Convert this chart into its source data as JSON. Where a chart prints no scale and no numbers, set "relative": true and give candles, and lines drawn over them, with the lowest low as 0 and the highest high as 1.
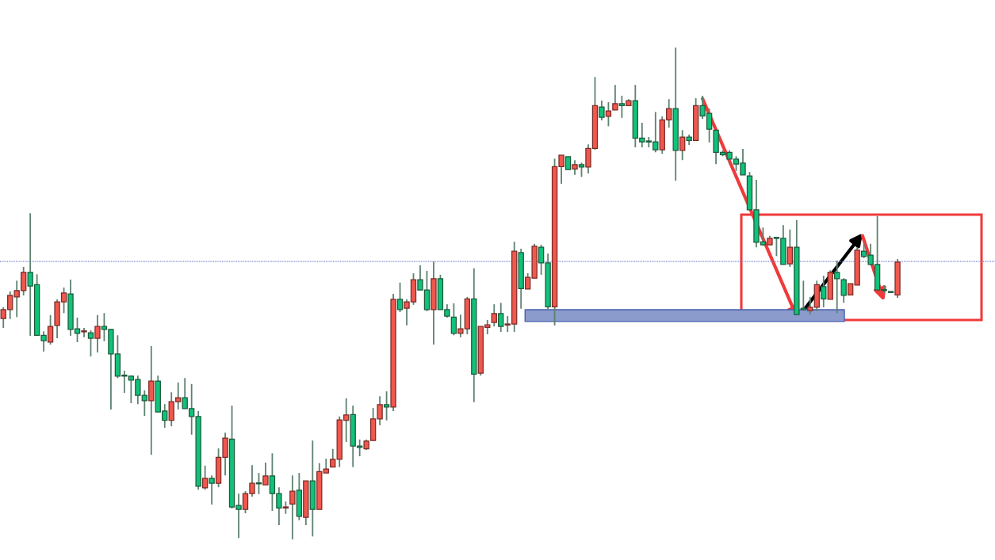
{
  "chart_data": {
    "type": "candlestick",
    "relative": true,
    "categories": [
      null,
      null,
      null,
      null,
      null,
      null,
      null,
      null,
      null,
      null,
      null,
      null,
      null,
      null,
      null,
      null,
      null,
      null,
      null,
      null,
      null,
      null,
      null,
      null,
      null,
      null,
      null,
      null,
      null,
      null,
      null,
      null,
      null,
      null,
      null,
      null,
      null,
      null,
      null,
      null,
      null,
      null,
      null,
      null,
      null,
      null,
      null,
      null,
      null,
      null,
      null,
      null,
      null,
      null,
      null,
      null,
      null,
      null,
      null,
      null,
      null,
      null,
      null,
      null,
      null,
      null,
      null,
      null,
      null,
      null,
      null,
      null,
      null,
      null,
      null,
      null,
      null,
      null,
      null,
      null,
      null,
      null,
      null,
      null,
      null,
      null,
      null,
      null,
      null,
      null,
      null,
      null,
      null,
      null,
      null,
      null,
      null,
      null,
      null,
      null,
      null,
      null,
      null,
      null,
      null,
      null,
      null,
      null,
      null,
      null,
      null,
      null,
      null,
      null,
      null,
      null,
      null,
      null,
      null,
      null,
      null,
      null,
      null,
      null,
      null,
      null,
      null,
      null,
      null,
      null,
      null,
      null,
      null,
      null
    ],
    "colors": [
      "#f0584e",
      "#f0584e",
      "#f0584e",
      "#f0584e",
      "#10c27a",
      "#10c27a",
      "#10c27a",
      "#f0584e",
      "#f0584e",
      "#f0584e",
      "#10c27a",
      "#10c27a",
      "#f0584e",
      "#10c27a",
      "#f0584e",
      "#10c27a",
      "#10c27a",
      "#10c27a",
      "#10c27a",
      "#10c27a",
      "#10c27a",
      "#10c27a",
      "#f0584e",
      "#10c27a",
      "#10c27a",
      "#f0584e",
      "#f0584e",
      "#10c27a",
      "#10c27a",
      "#10c27a",
      "#f0584e",
      "#10c27a",
      "#f0584e",
      "#f0584e",
      "#10c27a",
      "#10c27a",
      "#f0584e",
      "#f0584e",
      "#10c27a",
      "#f0584e",
      "#10c27a",
      "#10c27a",
      "#f0584e",
      "#f0584e",
      "#10c27a",
      "#f0584e",
      "#10c27a",
      "#f0584e",
      "#f0584e",
      "#f0584e",
      "#f0584e",
      "#f0584e",
      "#10c27a",
      "#10c27a",
      "#f0584e",
      "#f0584e",
      "#f0584e",
      "#10c27a",
      "#f0584e",
      "#10c27a",
      "#f0584e",
      "#f0584e",
      "#10c27a",
      "#10c27a",
      "#f0584e",
      "#10c27a",
      "#10c27a",
      "#10c27a",
      "#f0584e",
      "#f0584e",
      "#10c27a",
      "#f0584e",
      "#f0584e",
      "#f0584e",
      "#10c27a",
      "#f0584e",
      "#f0584e",
      "#10c27a",
      "#f0584e",
      "#f0584e",
      "#10c27a",
      "#10c27a",
      "#f0584e",
      "#f0584e",
      "#10c27a",
      "#f0584e",
      "#10c27a",
      "#f0584e",
      "#f0584e",
      "#10c27a",
      "#f0584e",
      "#f0584e",
      "#10c27a",
      "#f0584e",
      "#10c27a",
      "#10c27a",
      "#10c27a",
      "#10c27a",
      "#f0584e",
      "#f0584e",
      "#10c27a",
      "#f0584e",
      "#10c27a",
      "#f0584e",
      "#10c27a",
      "#10c27a",
      "#10c27a",
      "#10c27a",
      "#10c27a",
      "#10c27a",
      "#10c27a",
      "#10c27a",
      "#10c27a",
      "#10c27a",
      "#f0584e",
      "#10c27a",
      "#10c27a",
      "#f0584e",
      "#10c27a",
      "#10c27a",
      "#f0584e",
      "#f0584e",
      "#10c27a",
      "#f0584e",
      "#10c27a",
      "#10c27a",
      "#f0584e",
      "#f0584e",
      "#10c27a",
      "#10c27a",
      "#10c27a",
      "#10c27a",
      "#10c27a",
      "#f0584e"
    ],
    "ohlc": [
      [
        0.449,
        0.472,
        0.43,
        0.467
      ],
      [
        0.467,
        0.504,
        0.448,
        0.496
      ],
      [
        0.493,
        0.526,
        0.452,
        0.506
      ],
      [
        0.506,
        0.554,
        0.496,
        0.543
      ],
      [
        0.543,
        0.663,
        0.414,
        0.515
      ],
      [
        0.518,
        0.539,
        0.414,
        0.415
      ],
      [
        0.415,
        0.423,
        0.382,
        0.404
      ],
      [
        0.401,
        0.456,
        0.396,
        0.433
      ],
      [
        0.435,
        0.488,
        0.409,
        0.483
      ],
      [
        0.483,
        0.512,
        0.46,
        0.501
      ],
      [
        0.499,
        0.528,
        0.414,
        0.427
      ],
      [
        0.428,
        0.451,
        0.401,
        0.419
      ],
      [
        0.422,
        0.43,
        0.411,
        0.423
      ],
      [
        0.42,
        0.425,
        0.372,
        0.409
      ],
      [
        0.409,
        0.456,
        0.38,
        0.433
      ],
      [
        0.433,
        0.46,
        0.403,
        0.427
      ],
      [
        0.427,
        0.427,
        0.264,
        0.377
      ],
      [
        0.377,
        0.415,
        0.328,
        0.332
      ],
      [
        0.333,
        0.343,
        0.298,
        0.332
      ],
      [
        0.332,
        0.333,
        0.277,
        0.324
      ],
      [
        0.325,
        0.333,
        0.275,
        0.293
      ],
      [
        0.293,
        0.303,
        0.251,
        0.282
      ],
      [
        0.282,
        0.393,
        0.172,
        0.322
      ],
      [
        0.322,
        0.333,
        0.259,
        0.259
      ],
      [
        0.261,
        0.275,
        0.227,
        0.242
      ],
      [
        0.242,
        0.299,
        0.23,
        0.28
      ],
      [
        0.28,
        0.319,
        0.264,
        0.288
      ],
      [
        0.288,
        0.328,
        0.266,
        0.266
      ],
      [
        0.266,
        0.316,
        0.213,
        0.25
      ],
      [
        0.25,
        0.261,
        0.101,
        0.108
      ],
      [
        0.105,
        0.15,
        0.101,
        0.124
      ],
      [
        0.124,
        0.13,
        0.071,
        0.114
      ],
      [
        0.114,
        0.185,
        0.106,
        0.167
      ],
      [
        0.167,
        0.217,
        0.13,
        0.206
      ],
      [
        0.204,
        0.272,
        0.063,
        0.066
      ],
      [
        0.069,
        0.093,
        0.003,
        0.061
      ],
      [
        0.061,
        0.098,
        0.053,
        0.093
      ],
      [
        0.093,
        0.151,
        0.087,
        0.114
      ],
      [
        0.114,
        0.135,
        0.092,
        0.113
      ],
      [
        0.111,
        0.156,
        0.111,
        0.129
      ],
      [
        0.129,
        0.175,
        0.058,
        0.093
      ],
      [
        0.093,
        0.106,
        0.029,
        0.064
      ],
      [
        0.064,
        0.077,
        0.052,
        0.066
      ],
      [
        0.072,
        0.13,
        0.0,
        0.098
      ],
      [
        0.1,
        0.135,
        0.039,
        0.047
      ],
      [
        0.045,
        0.119,
        0.029,
        0.119
      ],
      [
        0.119,
        0.201,
        0.006,
        0.061
      ],
      [
        0.061,
        0.155,
        0.061,
        0.138
      ],
      [
        0.135,
        0.164,
        0.135,
        0.143
      ],
      [
        0.147,
        0.184,
        0.147,
        0.163
      ],
      [
        0.163,
        0.25,
        0.147,
        0.243
      ],
      [
        0.242,
        0.287,
        0.198,
        0.253
      ],
      [
        0.254,
        0.272,
        0.147,
        0.19
      ],
      [
        0.19,
        0.203,
        0.169,
        0.187
      ],
      [
        0.184,
        0.203,
        0.182,
        0.2
      ],
      [
        0.201,
        0.267,
        0.201,
        0.245
      ],
      [
        0.245,
        0.291,
        0.232,
        0.274
      ],
      [
        0.274,
        0.301,
        0.242,
        0.269
      ],
      [
        0.269,
        0.499,
        0.261,
        0.488
      ],
      [
        0.488,
        0.522,
        0.462,
        0.467
      ],
      [
        0.47,
        0.488,
        0.435,
        0.483
      ],
      [
        0.483,
        0.541,
        0.477,
        0.528
      ],
      [
        0.528,
        0.557,
        0.507,
        0.507
      ],
      [
        0.507,
        0.546,
        0.464,
        0.467
      ],
      [
        0.467,
        0.565,
        0.396,
        0.53
      ],
      [
        0.53,
        0.538,
        0.467,
        0.467
      ],
      [
        0.467,
        0.478,
        0.451,
        0.454
      ],
      [
        0.452,
        0.48,
        0.415,
        0.419
      ],
      [
        0.419,
        0.457,
        0.411,
        0.428
      ],
      [
        0.428,
        0.493,
        0.417,
        0.489
      ],
      [
        0.489,
        0.551,
        0.279,
        0.336
      ],
      [
        0.338,
        0.433,
        0.333,
        0.433
      ],
      [
        0.431,
        0.446,
        0.417,
        0.436
      ],
      [
        0.441,
        0.478,
        0.433,
        0.459
      ],
      [
        0.459,
        0.481,
        0.422,
        0.433
      ],
      [
        0.436,
        0.454,
        0.422,
        0.438
      ],
      [
        0.438,
        0.605,
        0.422,
        0.586
      ],
      [
        0.583,
        0.591,
        0.469,
        0.51
      ],
      [
        0.509,
        0.541,
        0.509,
        0.533
      ],
      [
        0.531,
        0.601,
        0.531,
        0.596
      ],
      [
        0.594,
        0.599,
        0.538,
        0.562
      ],
      [
        0.562,
        0.581,
        0.467,
        0.473
      ],
      [
        0.473,
        0.774,
        0.435,
        0.758
      ],
      [
        0.758,
        0.781,
        0.723,
        0.781
      ],
      [
        0.778,
        0.778,
        0.752,
        0.752
      ],
      [
        0.753,
        0.771,
        0.741,
        0.762
      ],
      [
        0.762,
        0.766,
        0.737,
        0.757
      ],
      [
        0.757,
        0.803,
        0.744,
        0.795
      ],
      [
        0.795,
        0.94,
        0.792,
        0.882
      ],
      [
        0.879,
        0.892,
        0.852,
        0.858
      ],
      [
        0.86,
        0.889,
        0.84,
        0.871
      ],
      [
        0.873,
        0.924,
        0.873,
        0.886
      ],
      [
        0.886,
        0.902,
        0.857,
        0.882
      ],
      [
        0.882,
        0.895,
        0.882,
        0.892
      ],
      [
        0.892,
        0.924,
        0.797,
        0.816
      ],
      [
        0.816,
        0.847,
        0.797,
        0.808
      ],
      [
        0.81,
        0.818,
        0.797,
        0.808
      ],
      [
        0.808,
        0.869,
        0.787,
        0.792
      ],
      [
        0.792,
        0.86,
        0.784,
        0.853
      ],
      [
        0.853,
        0.895,
        0.837,
        0.876
      ],
      [
        0.876,
        1.0,
        0.729,
        0.791
      ],
      [
        0.791,
        0.832,
        0.771,
        0.818
      ],
      [
        0.818,
        0.823,
        0.802,
        0.811
      ],
      [
        0.811,
        0.897,
        0.811,
        0.882
      ],
      [
        0.882,
        0.902,
        0.855,
        0.861
      ],
      [
        0.866,
        0.876,
        0.807,
        0.834
      ],
      [
        0.832,
        0.832,
        0.763,
        0.787
      ],
      [
        0.787,
        0.791,
        0.779,
        0.782
      ],
      [
        0.787,
        0.791,
        0.763,
        0.773
      ],
      [
        0.773,
        0.779,
        0.749,
        0.763
      ],
      [
        0.765,
        0.794,
        0.741,
        0.741
      ],
      [
        0.739,
        0.747,
        0.67,
        0.67
      ],
      [
        0.67,
        0.731,
        0.594,
        0.604
      ],
      [
        0.605,
        0.634,
        0.597,
        0.599
      ],
      [
        0.599,
        0.617,
        0.599,
        0.612
      ],
      [
        0.613,
        0.613,
        0.576,
        0.612
      ],
      [
        0.612,
        0.639,
        0.559,
        0.559
      ],
      [
        0.56,
        0.63,
        0.554,
        0.594
      ],
      [
        0.594,
        0.649,
        0.457,
        0.457
      ],
      [
        0.47,
        0.526,
        0.467,
        0.467
      ],
      [
        0.465,
        0.493,
        0.457,
        0.472
      ],
      [
        0.472,
        0.526,
        0.464,
        0.518
      ],
      [
        0.514,
        0.536,
        0.472,
        0.489
      ],
      [
        0.488,
        0.547,
        0.488,
        0.543
      ],
      [
        0.543,
        0.567,
        0.46,
        0.53
      ],
      [
        0.528,
        0.531,
        0.481,
        0.496
      ],
      [
        0.497,
        0.52,
        0.497,
        0.52
      ],
      [
        0.517,
        0.594,
        0.517,
        0.588
      ],
      [
        0.586,
        0.602,
        0.572,
        0.575
      ],
      [
        0.578,
        0.601,
        0.557,
        0.559
      ],
      [
        0.559,
        0.657,
        0.507,
        0.507
      ],
      [
        0.507,
        0.517,
        0.501,
        0.506
      ],
      [
        0.504,
        0.504,
        0.502,
        0.502
      ],
      [
        0.497,
        0.57,
        0.491,
        0.564
      ]
    ],
    "ref_lines": [
      {
        "axis": "y",
        "value": 0.565,
        "color": "#6f7fd6",
        "line_style": "dotted"
      }
    ],
    "bands": [
      {
        "axis": "y",
        "from": 0.443,
        "to": 0.467,
        "color": "#8a9bcc"
      }
    ]
  }
}
